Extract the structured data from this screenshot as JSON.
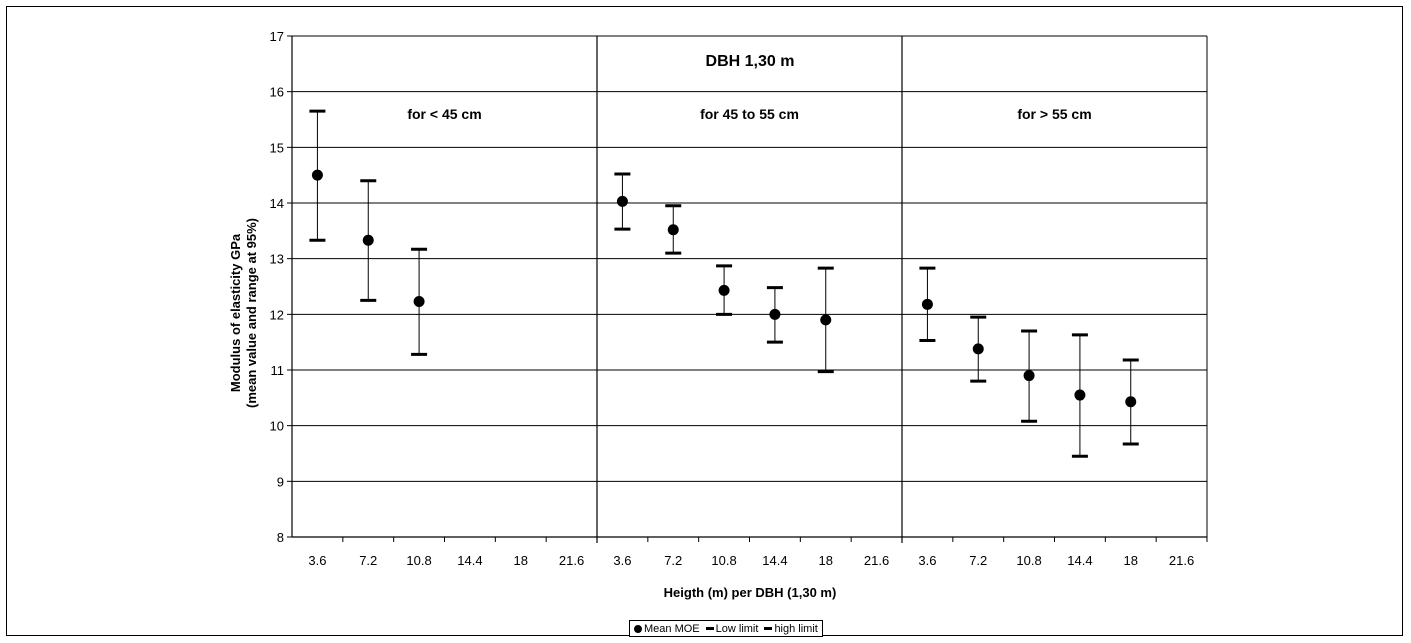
{
  "chart_data": {
    "type": "scatter",
    "title": "DBH 1,30 m",
    "xlabel": "Heigth (m) per DBH (1,30 m)",
    "ylabel_line1": "Modulus of elasticity GPa",
    "ylabel_line2": "(mean value and range at 95%)",
    "ylim": [
      8,
      17
    ],
    "yticks": [
      "8",
      "9",
      "10",
      "11",
      "12",
      "13",
      "14",
      "15",
      "16",
      "17"
    ],
    "xticks": [
      "3.6",
      "7.2",
      "10.8",
      "14.4",
      "18",
      "21.6"
    ],
    "grid": true,
    "legend_position": "bottom-center",
    "legend": [
      {
        "label": "Mean MOE",
        "marker": "dot"
      },
      {
        "label": "Low limit",
        "marker": "dash"
      },
      {
        "label": "high limit",
        "marker": "dash"
      }
    ],
    "panels": [
      {
        "label": "for < 45 cm",
        "points": [
          {
            "x": 3.6,
            "mean": 14.5,
            "low": 13.33,
            "high": 15.65
          },
          {
            "x": 7.2,
            "mean": 13.33,
            "low": 12.25,
            "high": 14.4
          },
          {
            "x": 10.8,
            "mean": 12.23,
            "low": 11.28,
            "high": 13.17
          }
        ]
      },
      {
        "label": "for 45 to 55 cm",
        "points": [
          {
            "x": 3.6,
            "mean": 14.03,
            "low": 13.53,
            "high": 14.52
          },
          {
            "x": 7.2,
            "mean": 13.52,
            "low": 13.1,
            "high": 13.95
          },
          {
            "x": 10.8,
            "mean": 12.43,
            "low": 12.0,
            "high": 12.87
          },
          {
            "x": 14.4,
            "mean": 12.0,
            "low": 11.5,
            "high": 12.48
          },
          {
            "x": 18,
            "mean": 11.9,
            "low": 10.97,
            "high": 12.83
          }
        ]
      },
      {
        "label": "for > 55 cm",
        "points": [
          {
            "x": 3.6,
            "mean": 12.18,
            "low": 11.53,
            "high": 12.83
          },
          {
            "x": 7.2,
            "mean": 11.38,
            "low": 10.8,
            "high": 11.95
          },
          {
            "x": 10.8,
            "mean": 10.9,
            "low": 10.08,
            "high": 11.7
          },
          {
            "x": 14.4,
            "mean": 10.55,
            "low": 9.45,
            "high": 11.63
          },
          {
            "x": 18,
            "mean": 10.43,
            "low": 9.67,
            "high": 11.18
          }
        ]
      }
    ]
  }
}
